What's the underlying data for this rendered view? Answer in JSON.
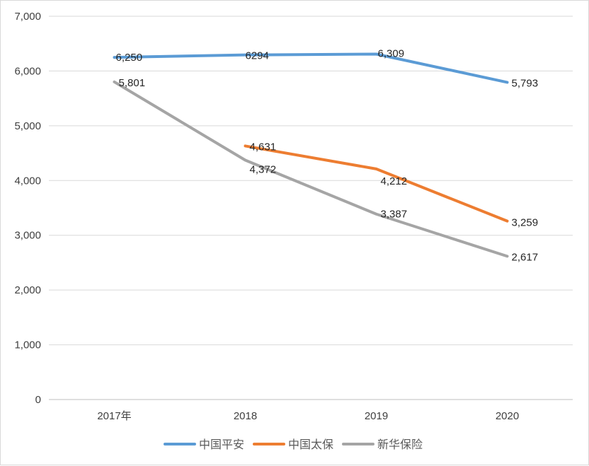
{
  "chart_data": {
    "type": "line",
    "categories": [
      "2017年",
      "2018",
      "2019",
      "2020"
    ],
    "series": [
      {
        "name": "中国平安",
        "values": [
          6250,
          6294,
          6309,
          5793
        ],
        "labels": [
          "6,250",
          "6294",
          "6,309",
          "5,793"
        ],
        "color": "#5B9BD5"
      },
      {
        "name": "中国太保",
        "values": [
          null,
          4631,
          4212,
          3259
        ],
        "labels": [
          "",
          "4,631",
          "4,212",
          "3,259"
        ],
        "color": "#ED7D31"
      },
      {
        "name": "新华保险",
        "values": [
          5801,
          4372,
          3387,
          2617
        ],
        "labels": [
          "5,801",
          "4,372",
          "3,387",
          "2,617"
        ],
        "color": "#A5A5A5"
      }
    ],
    "ylim": [
      0,
      7000
    ],
    "yticks": [
      0,
      1000,
      2000,
      3000,
      4000,
      5000,
      6000,
      7000
    ],
    "ytick_labels": [
      "0",
      "1,000",
      "2,000",
      "3,000",
      "4,000",
      "5,000",
      "6,000",
      "7,000"
    ],
    "grid": true,
    "legend": "bottom",
    "title": "",
    "xlabel": "",
    "ylabel": ""
  }
}
